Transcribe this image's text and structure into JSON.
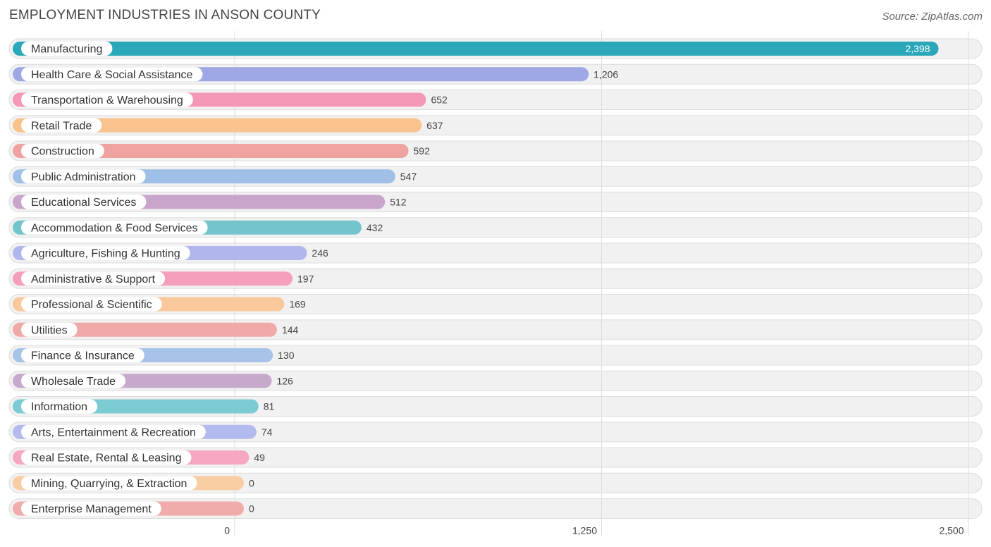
{
  "source": "Source: ZipAtlas.com",
  "chart_data": {
    "type": "bar",
    "orientation": "horizontal",
    "title": "EMPLOYMENT INDUSTRIES IN ANSON COUNTY",
    "xlim": [
      0,
      2500
    ],
    "xticks": [
      0,
      1250,
      2500
    ],
    "xtick_labels": [
      "0",
      "1,250",
      "2,500"
    ],
    "grid": true,
    "categories": [
      "Manufacturing",
      "Health Care & Social Assistance",
      "Transportation & Warehousing",
      "Retail Trade",
      "Construction",
      "Public Administration",
      "Educational Services",
      "Accommodation & Food Services",
      "Agriculture, Fishing & Hunting",
      "Administrative & Support",
      "Professional & Scientific",
      "Utilities",
      "Finance & Insurance",
      "Wholesale Trade",
      "Information",
      "Arts, Entertainment & Recreation",
      "Real Estate, Rental & Leasing",
      "Mining, Quarrying, & Extraction",
      "Enterprise Management"
    ],
    "values": [
      2398,
      1206,
      652,
      637,
      592,
      547,
      512,
      432,
      246,
      197,
      169,
      144,
      130,
      126,
      81,
      74,
      49,
      0,
      0
    ],
    "value_labels": [
      "2,398",
      "1,206",
      "652",
      "637",
      "592",
      "547",
      "512",
      "432",
      "246",
      "197",
      "169",
      "144",
      "130",
      "126",
      "81",
      "74",
      "49",
      "0",
      "0"
    ],
    "colors": [
      "#2aa7b8",
      "#9ea8e6",
      "#f597b6",
      "#f9c38e",
      "#eea3a0",
      "#9fbfe7",
      "#c9a5cc",
      "#74c5cb",
      "#b1b7ec",
      "#f59fbd",
      "#f9c89b",
      "#f0a9a7",
      "#a7c3e9",
      "#c8a9ce",
      "#7ccbd2",
      "#b3baed",
      "#f6a7c1",
      "#f9cda2",
      "#f0acab"
    ]
  }
}
